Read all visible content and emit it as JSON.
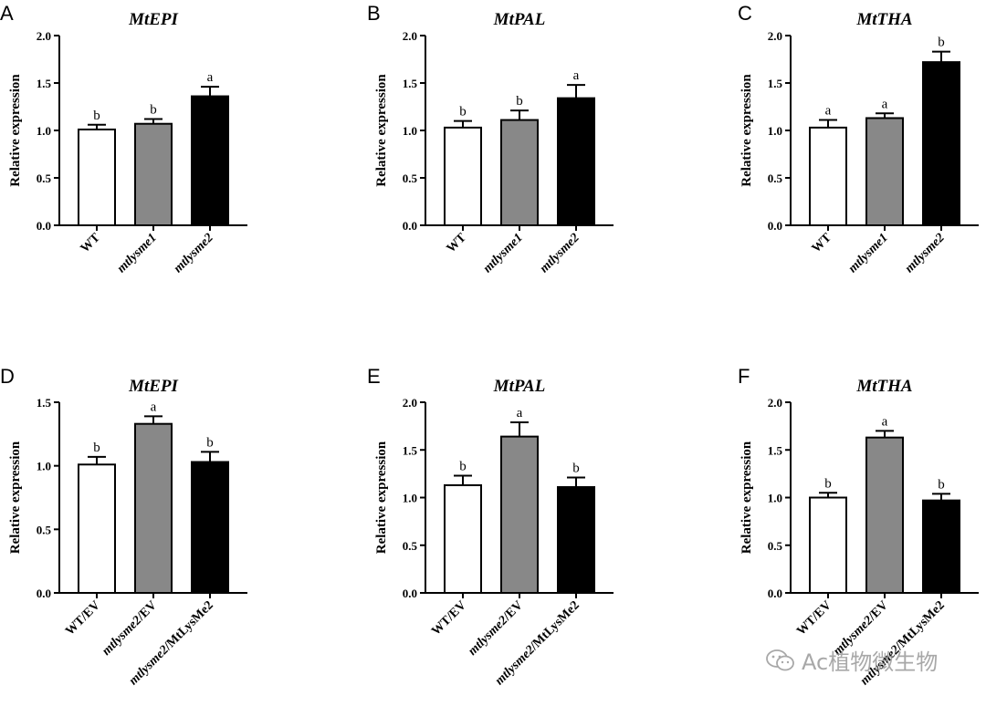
{
  "watermark": {
    "text": "Ac植物微生物",
    "icon": "wechat-icon"
  },
  "colors": {
    "wt": "#ffffff",
    "mutant1": "#888888",
    "mutant2": "#000000",
    "axis": "#000000"
  },
  "chart_data": [
    {
      "panel": "A",
      "type": "bar",
      "title": "MtEPI",
      "ylabel": "Relative expression",
      "ylim": [
        0,
        2.0
      ],
      "yticks": [
        "0.0",
        "0.5",
        "1.0",
        "1.5",
        "2.0"
      ],
      "categories": [
        {
          "label": "WT",
          "italic": false
        },
        {
          "label": "mtlysme1",
          "italic": true
        },
        {
          "label": "mtlysme2",
          "italic": true
        }
      ],
      "values": [
        1.01,
        1.07,
        1.36
      ],
      "errors": [
        0.05,
        0.05,
        0.1
      ],
      "letters": [
        "b",
        "b",
        "a"
      ],
      "fills": [
        "#ffffff",
        "#888888",
        "#000000"
      ]
    },
    {
      "panel": "B",
      "type": "bar",
      "title": "MtPAL",
      "ylabel": "Relative expression",
      "ylim": [
        0,
        2.0
      ],
      "yticks": [
        "0.0",
        "0.5",
        "1.0",
        "1.5",
        "2.0"
      ],
      "categories": [
        {
          "label": "WT",
          "italic": false
        },
        {
          "label": "mtlysme1",
          "italic": true
        },
        {
          "label": "mtlysme2",
          "italic": true
        }
      ],
      "values": [
        1.03,
        1.11,
        1.34
      ],
      "errors": [
        0.07,
        0.1,
        0.14
      ],
      "letters": [
        "b",
        "b",
        "a"
      ],
      "fills": [
        "#ffffff",
        "#888888",
        "#000000"
      ]
    },
    {
      "panel": "C",
      "type": "bar",
      "title": "MtTHA",
      "ylabel": "Relative expression",
      "ylim": [
        0,
        2.0
      ],
      "yticks": [
        "0.0",
        "0.5",
        "1.0",
        "1.5",
        "2.0"
      ],
      "categories": [
        {
          "label": "WT",
          "italic": false
        },
        {
          "label": "mtlysme1",
          "italic": true
        },
        {
          "label": "mtlysme2",
          "italic": true
        }
      ],
      "values": [
        1.03,
        1.13,
        1.72
      ],
      "errors": [
        0.08,
        0.05,
        0.11
      ],
      "letters": [
        "a",
        "a",
        "b"
      ],
      "fills": [
        "#ffffff",
        "#888888",
        "#000000"
      ]
    },
    {
      "panel": "D",
      "type": "bar",
      "title": "MtEPI",
      "ylabel": "Relative expression",
      "ylim": [
        0,
        1.5
      ],
      "yticks": [
        "0.0",
        "0.5",
        "1.0",
        "1.5"
      ],
      "categories": [
        {
          "label": "WT/EV",
          "italic": false
        },
        {
          "label": "mtlysme2/EV",
          "italic": true
        },
        {
          "label": "mtlysme2/MtLysMe2",
          "italic": true
        }
      ],
      "values": [
        1.01,
        1.33,
        1.03
      ],
      "errors": [
        0.06,
        0.06,
        0.08
      ],
      "letters": [
        "b",
        "a",
        "b"
      ],
      "fills": [
        "#ffffff",
        "#888888",
        "#000000"
      ]
    },
    {
      "panel": "E",
      "type": "bar",
      "title": "MtPAL",
      "ylabel": "Relative expression",
      "ylim": [
        0,
        2.0
      ],
      "yticks": [
        "0.0",
        "0.5",
        "1.0",
        "1.5",
        "2.0"
      ],
      "categories": [
        {
          "label": "WT/EV",
          "italic": false
        },
        {
          "label": "mtlysme2/EV",
          "italic": true
        },
        {
          "label": "mtlysme2/MtLysMe2",
          "italic": true
        }
      ],
      "values": [
        1.13,
        1.64,
        1.11
      ],
      "errors": [
        0.1,
        0.15,
        0.1
      ],
      "letters": [
        "b",
        "a",
        "b"
      ],
      "fills": [
        "#ffffff",
        "#888888",
        "#000000"
      ]
    },
    {
      "panel": "F",
      "type": "bar",
      "title": "MtTHA",
      "ylabel": "Relative expression",
      "ylim": [
        0,
        2.0
      ],
      "yticks": [
        "0.0",
        "0.5",
        "1.0",
        "1.5",
        "2.0"
      ],
      "categories": [
        {
          "label": "WT/EV",
          "italic": false
        },
        {
          "label": "mtlysme2/EV",
          "italic": true
        },
        {
          "label": "mtlysme2/MtLysMe2",
          "italic": true
        }
      ],
      "values": [
        1.0,
        1.63,
        0.97
      ],
      "errors": [
        0.05,
        0.07,
        0.07
      ],
      "letters": [
        "b",
        "a",
        "b"
      ],
      "fills": [
        "#ffffff",
        "#888888",
        "#000000"
      ]
    }
  ]
}
